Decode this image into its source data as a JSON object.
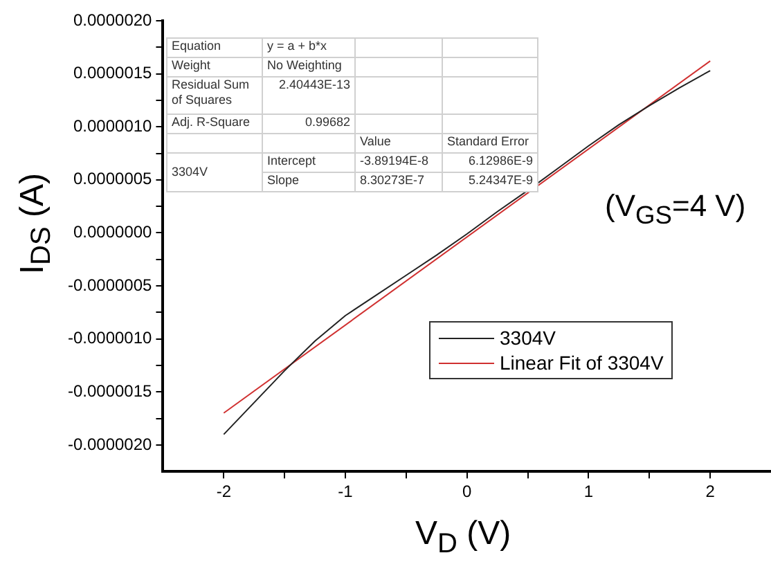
{
  "chart_data": {
    "type": "line",
    "xlabel": "V$_{D}$ (V)",
    "ylabel": "I$_{DS}$ (A)",
    "xlim": [
      -2.5,
      2.5
    ],
    "xticks": [
      -2,
      {
        "value": -1.5,
        "label": null
      },
      -1,
      {
        "value": -0.5,
        "label": null
      },
      0,
      {
        "value": 0.5,
        "label": null
      },
      1,
      {
        "value": 1.5,
        "label": null
      },
      2
    ],
    "ylim": [
      -2.25e-06,
      2e-06
    ],
    "yticks": [
      {
        "value": -2e-06,
        "label": "-0.0000020"
      },
      {
        "value": -1.75e-06,
        "label": null
      },
      {
        "value": -1.5e-06,
        "label": "-0.0000015"
      },
      {
        "value": -1.25e-06,
        "label": null
      },
      {
        "value": -1e-06,
        "label": "-0.0000010"
      },
      {
        "value": -7.5e-07,
        "label": null
      },
      {
        "value": -5e-07,
        "label": "-0.0000005"
      },
      {
        "value": -2.5e-07,
        "label": null
      },
      {
        "value": 0,
        "label": "0.0000000"
      },
      {
        "value": 2.5e-07,
        "label": null
      },
      {
        "value": 5e-07,
        "label": "0.0000005"
      },
      {
        "value": 7.5e-07,
        "label": null
      },
      {
        "value": 1e-06,
        "label": "0.0000010"
      },
      {
        "value": 1.25e-06,
        "label": null
      },
      {
        "value": 1.5e-06,
        "label": "0.0000015"
      },
      {
        "value": 1.75e-06,
        "label": null
      },
      {
        "value": 2e-06,
        "label": "0.0000020"
      }
    ],
    "grid": false,
    "legend": "right",
    "marker": "none",
    "line_style": "solid",
    "series": [
      {
        "name": "3304V",
        "color": "#222222",
        "x": [
          -2,
          -1.75,
          -1.5,
          -1.25,
          -1,
          -0.75,
          -0.5,
          -0.25,
          0,
          0.25,
          0.5,
          0.75,
          1,
          1.25,
          1.5,
          1.75,
          2
        ],
        "values": [
          -1.9e-06,
          -1.6e-06,
          -1.3e-06,
          -1.02e-06,
          -7.8e-07,
          -5.9e-07,
          -4e-07,
          -2.1e-07,
          -1e-08,
          2e-07,
          4e-07,
          6.1e-07,
          8.2e-07,
          1.02e-06,
          1.2e-06,
          1.37e-06,
          1.53e-06
        ]
      },
      {
        "name": "Linear Fit of 3304V",
        "color": "#d03030",
        "x": [
          -2,
          2
        ],
        "values": [
          -1.699e-06,
          1.621e-06
        ]
      }
    ],
    "annotations": [
      "(V$_{GS}$=4 V)",
      "Equation",
      "y = a + b*x",
      "Weight",
      "No Weighting",
      "Residual Sum of Squares",
      "2.40443E-13",
      "Adj. R-Square",
      "0.99682",
      "Value",
      "Standard Error",
      "3304V",
      "Intercept",
      "-3.89194E-8",
      "6.12986E-9",
      "Slope",
      "8.30273E-7",
      "5.24347E-9"
    ]
  }
}
